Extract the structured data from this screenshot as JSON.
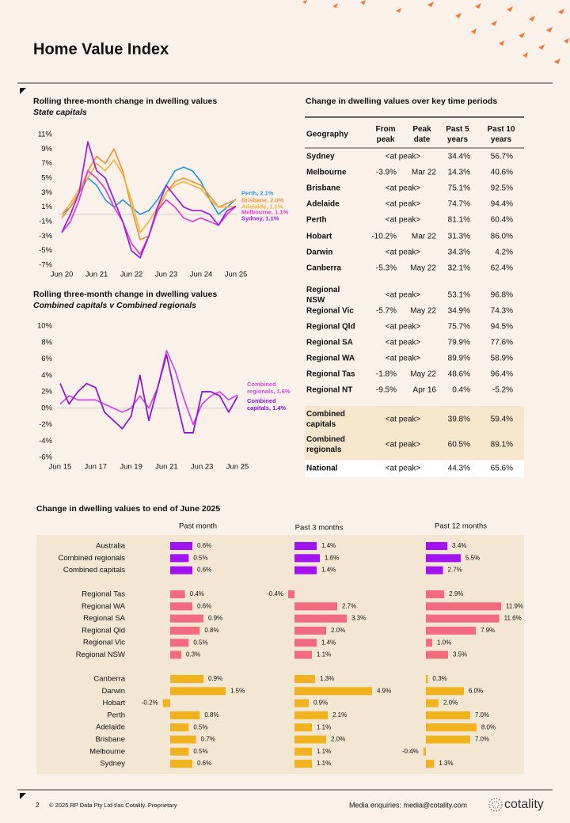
{
  "header": {
    "title": "Home Value Index"
  },
  "chart_data": [
    {
      "type": "line",
      "title": "Rolling three-month change in dwelling values",
      "subtitle": "State capitals",
      "categories": [
        "Jun 20",
        null,
        null,
        null,
        "Jun 21",
        null,
        null,
        null,
        "Jun 22",
        null,
        null,
        null,
        "Jun 23",
        null,
        null,
        null,
        "Jun 24",
        null,
        null,
        null,
        "Jun 25"
      ],
      "series": [
        {
          "name": "Perth, 2.1%",
          "color": "#2b9be0",
          "values": [
            0,
            1,
            3,
            5,
            4,
            2,
            1,
            2,
            1,
            0,
            0.5,
            2,
            4,
            6,
            6.5,
            6,
            4.5,
            2,
            0,
            1,
            2.1
          ]
        },
        {
          "name": "Brisbane, 2.0%",
          "color": "#f4943a",
          "values": [
            -0.5,
            1,
            3,
            6,
            8,
            7,
            9,
            6,
            1,
            -3.5,
            -3,
            0.5,
            3,
            4.5,
            5,
            4.5,
            4,
            2.5,
            1,
            1.5,
            2.0
          ]
        },
        {
          "name": "Adelaide, 1.1%",
          "color": "#f2b53a",
          "values": [
            0,
            1.5,
            3.5,
            5,
            7,
            6,
            7.5,
            5.5,
            2,
            -2.5,
            -1,
            1,
            3,
            4,
            4.5,
            4,
            3.5,
            2,
            1,
            1,
            1.1
          ]
        },
        {
          "name": "Melbourne, 1.1%",
          "color": "#e040d0",
          "values": [
            -2.5,
            -1,
            2,
            6,
            5,
            3.5,
            1,
            -1,
            -4,
            -5.5,
            -3,
            0.5,
            2,
            1,
            -0.5,
            -1,
            -0.5,
            -1,
            -1.5,
            0,
            1.1
          ]
        },
        {
          "name": "Sydney, 1.1%",
          "color": "#9a1ee8",
          "values": [
            -2.5,
            0,
            3,
            10,
            6,
            5,
            2,
            -1,
            -5,
            -6,
            -3,
            1,
            4,
            2.5,
            1,
            0.5,
            0.5,
            0,
            -1.5,
            0.5,
            1.1
          ]
        }
      ],
      "ylim": [
        -7,
        12
      ],
      "yticks": [
        {
          "value": -7,
          "label": "-7%"
        },
        {
          "value": -5,
          "label": "-5%"
        },
        {
          "value": -3,
          "label": "-3%"
        },
        {
          "value": -1,
          "label": "-1%"
        },
        {
          "value": 1,
          "label": "1%"
        },
        {
          "value": 3,
          "label": "3%"
        },
        {
          "value": 5,
          "label": "5%"
        },
        {
          "value": 7,
          "label": "7%"
        },
        {
          "value": 9,
          "label": "9%"
        },
        {
          "value": 11,
          "label": "11%"
        }
      ]
    },
    {
      "type": "line",
      "title": "Rolling three-month change in dwelling values",
      "subtitle": "Combined capitals v Combined regionals",
      "categories": [
        "Jun 15",
        null,
        null,
        null,
        "Jun 17",
        null,
        null,
        null,
        "Jun 19",
        null,
        null,
        null,
        "Jun 21",
        null,
        null,
        null,
        "Jun 23",
        null,
        null,
        null,
        "Jun 25"
      ],
      "series": [
        {
          "name": "Combined regionals, 1.6%",
          "color": "#d04ce0",
          "values": [
            0.5,
            1.5,
            1,
            1,
            1,
            0.5,
            0,
            -0.5,
            0,
            1.5,
            0,
            2.5,
            7,
            4.5,
            1,
            -2,
            0.5,
            1.5,
            2,
            1,
            1.6
          ]
        },
        {
          "name": "Combined capitals, 1.4%",
          "color": "#8a10e0",
          "values": [
            3,
            0.5,
            2,
            3,
            2.5,
            -0.5,
            -1.5,
            -2.5,
            -1,
            4,
            -1.5,
            2.5,
            6.5,
            1.5,
            -3,
            -3,
            2,
            2,
            1.5,
            -0.5,
            1.4
          ]
        }
      ],
      "ylim": [
        -6,
        10
      ],
      "yticks": [
        {
          "value": -6,
          "label": "-6%"
        },
        {
          "value": -4,
          "label": "-4%"
        },
        {
          "value": -2,
          "label": "-2%"
        },
        {
          "value": 0,
          "label": "0%"
        },
        {
          "value": 2,
          "label": "2%"
        },
        {
          "value": 4,
          "label": "4%"
        },
        {
          "value": 6,
          "label": "6%"
        },
        {
          "value": 8,
          "label": "8%"
        },
        {
          "value": 10,
          "label": "10%"
        }
      ]
    },
    {
      "type": "hbar_panels",
      "title": "Change in dwelling values to end of June 2025",
      "groups": [
        {
          "color": "#a113f0",
          "categories": [
            "Australia",
            "Combined regionals",
            "Combined capitals"
          ]
        },
        {
          "color": "#f26b7f",
          "categories": [
            "Regional Tas",
            "Regional WA",
            "Regional SA",
            "Regional Qld",
            "Regional Vic",
            "Regional NSW"
          ]
        },
        {
          "color": "#f0b31d",
          "categories": [
            "Canberra",
            "Darwin",
            "Hobart",
            "Perth",
            "Adelaide",
            "Brisbane",
            "Melbourne",
            "Sydney"
          ]
        }
      ],
      "panels": [
        {
          "name": "Past month",
          "values": [
            [
              0.6,
              0.5,
              0.6
            ],
            [
              0.4,
              0.6,
              0.9,
              0.8,
              0.5,
              0.3
            ],
            [
              0.9,
              1.5,
              -0.2,
              0.8,
              0.5,
              0.7,
              0.5,
              0.6
            ]
          ],
          "value_labels": [
            [
              "0.6%",
              "0.5%",
              "0.6%"
            ],
            [
              "0.4%",
              "0.6%",
              "0.9%",
              "0.8%",
              "0.5%",
              "0.3%"
            ],
            [
              "0.9%",
              "1.5%",
              "-0.2%",
              "0.8%",
              "0.5%",
              "0.7%",
              "0.5%",
              "0.6%"
            ]
          ]
        },
        {
          "name": "Past 3 months",
          "values": [
            [
              1.4,
              1.6,
              1.4
            ],
            [
              -0.4,
              2.7,
              3.3,
              2.0,
              1.4,
              1.1
            ],
            [
              1.3,
              4.9,
              0.9,
              2.1,
              1.1,
              2.0,
              1.1,
              1.1
            ]
          ],
          "value_labels": [
            [
              "1.4%",
              "1.6%",
              "1.4%"
            ],
            [
              "-0.4%",
              "2.7%",
              "3.3%",
              "2.0%",
              "1.4%",
              "1.1%"
            ],
            [
              "1.3%",
              "4.9%",
              "0.9%",
              "2.1%",
              "1.1%",
              "2.0%",
              "1.1%",
              "1.1%"
            ]
          ]
        },
        {
          "name": "Past 12 months",
          "values": [
            [
              3.4,
              5.5,
              2.7
            ],
            [
              2.9,
              11.9,
              11.6,
              7.9,
              1.0,
              3.5
            ],
            [
              0.3,
              6.0,
              2.0,
              7.0,
              8.0,
              7.0,
              -0.4,
              1.3
            ]
          ],
          "value_labels": [
            [
              "3.4%",
              "5.5%",
              "2.7%"
            ],
            [
              "2.9%",
              "11.9%",
              "11.6%",
              "7.9%",
              "1.0%",
              "3.5%"
            ],
            [
              "0.3%",
              "6.0%",
              "2.0%",
              "7.0%",
              "8.0%",
              "7.0%",
              "-0.4%",
              "1.3%"
            ]
          ]
        }
      ]
    }
  ],
  "table": {
    "title": "Change in dwelling values over key time periods",
    "columns": [
      "Geography",
      "From peak",
      "Peak date",
      "Past 5 years",
      "Past 10 years"
    ],
    "sections": [
      [
        [
          "Sydney",
          "<at peak>",
          "34.4%",
          "56.7%"
        ],
        [
          "Melbourne",
          "-3.9%",
          "Mar 22",
          "14.3%",
          "40.6%"
        ],
        [
          "Brisbane",
          "<at peak>",
          "75.1%",
          "92.5%"
        ],
        [
          "Adelaide",
          "<at peak>",
          "74.7%",
          "94.4%"
        ],
        [
          "Perth",
          "<at peak>",
          "81.1%",
          "60.4%"
        ],
        [
          "Hobart",
          "-10.2%",
          "Mar 22",
          "31.3%",
          "86.0%"
        ],
        [
          "Darwin",
          "<at peak>",
          "34.3%",
          "4.2%"
        ],
        [
          "Canberra",
          "-5.3%",
          "May 22",
          "32.1%",
          "62.4%"
        ]
      ],
      [
        [
          "Regional NSW",
          "<at peak>",
          "53.1%",
          "96.8%"
        ],
        [
          "Regional Vic",
          "-5.7%",
          "May 22",
          "34.9%",
          "74.3%"
        ],
        [
          "Regional Qld",
          "<at peak>",
          "75.7%",
          "94.5%"
        ],
        [
          "Regional SA",
          "<at peak>",
          "79.9%",
          "77.6%"
        ],
        [
          "Regional WA",
          "<at peak>",
          "89.9%",
          "58.9%"
        ],
        [
          "Regional Tas",
          "-1.8%",
          "May 22",
          "48.6%",
          "96.4%"
        ],
        [
          "Regional NT",
          "-9.5%",
          "Apr 16",
          "0.4%",
          "-5.2%"
        ]
      ],
      [
        [
          "Combined capitals",
          "<at peak>",
          "39.8%",
          "59.4%"
        ],
        [
          "Combined regionals",
          "<at peak>",
          "60.5%",
          "89.1%"
        ]
      ],
      [
        [
          "National",
          "<at peak>",
          "44.3%",
          "65.6%"
        ]
      ]
    ]
  },
  "footer": {
    "page": "2",
    "copyright": "© 2025 RP Data Pty Ltd t/as Cotality. Proprietary",
    "contact": "Media enquiries: media@cotality.com",
    "logo": "cotality"
  }
}
